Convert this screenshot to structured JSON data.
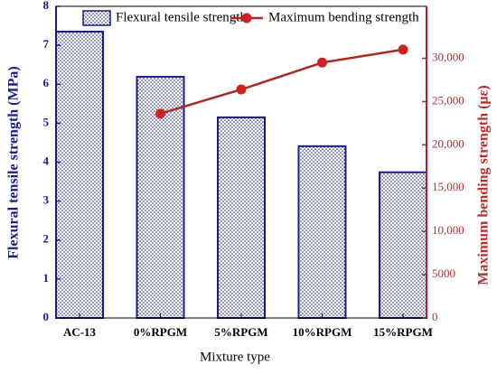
{
  "chart_data": {
    "type": "bar_line",
    "x_label": "Mixture type",
    "y_label": "Flexural tensile strength (MPa)",
    "y2_label": "Maximum bending strength (με)",
    "categories": [
      "AC-13",
      "0%RPGM",
      "5%RPGM",
      "10%RPGM",
      "15%RPGM"
    ],
    "series": [
      {
        "name": "Flexural tensile strength",
        "type": "bar",
        "color": "#1a1a8c",
        "values": [
          7.35,
          6.19,
          5.15,
          4.41,
          3.74
        ]
      },
      {
        "name": "Maximum bending strength",
        "type": "line",
        "axis": "y2",
        "color": "#a52a2a",
        "marker_color": "#d02020",
        "values": [
          null,
          23600,
          26400,
          29500,
          31000
        ]
      }
    ],
    "ylim": [
      0,
      8
    ],
    "yticks": [
      0,
      1,
      2,
      3,
      4,
      5,
      6,
      7,
      8
    ],
    "y2lim": [
      0,
      36000
    ],
    "y2ticks": [
      0,
      5000,
      {
        "value": 10000,
        "label": "10,000"
      },
      {
        "value": 15000,
        "label": "15,000"
      },
      {
        "value": 20000,
        "label": "20,000"
      },
      {
        "value": 25000,
        "label": "25,000"
      },
      {
        "value": 30000,
        "label": "30,000"
      }
    ],
    "legend": "top"
  }
}
